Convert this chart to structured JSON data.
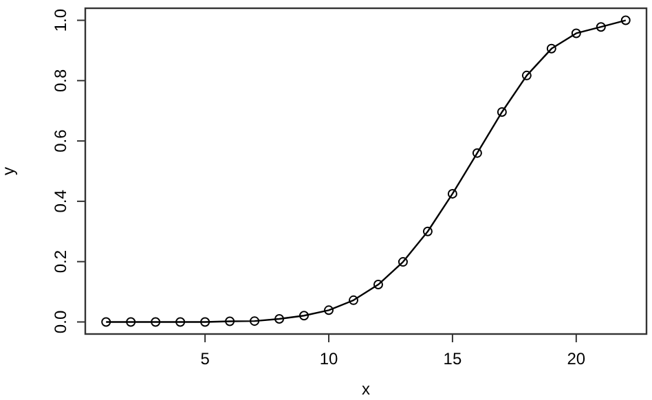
{
  "chart_data": {
    "type": "line",
    "xlabel": "x",
    "ylabel": "y",
    "x": [
      1,
      2,
      3,
      4,
      5,
      6,
      7,
      8,
      9,
      10,
      11,
      12,
      13,
      14,
      15,
      16,
      17,
      18,
      19,
      20,
      21,
      22
    ],
    "series": [
      {
        "color": "#000000",
        "values": [
          0,
          0,
          0,
          0,
          0,
          0.002,
          0.003,
          0.01,
          0.021,
          0.039,
          0.072,
          0.124,
          0.199,
          0.3,
          0.425,
          0.56,
          0.696,
          0.817,
          0.906,
          0.957,
          0.978,
          1.0
        ]
      }
    ],
    "xlim": [
      0.16,
      22.84
    ],
    "ylim": [
      -0.04,
      1.04
    ],
    "xticks": [
      5,
      10,
      15,
      20
    ],
    "yticks": [
      {
        "value": 0,
        "label": "0.0"
      },
      {
        "value": 0.2,
        "label": "0.2"
      },
      {
        "value": 0.4,
        "label": "0.4"
      },
      {
        "value": 0.6,
        "label": "0.6"
      },
      {
        "value": 0.8,
        "label": "0.8"
      },
      {
        "value": 1,
        "label": "1.0"
      }
    ],
    "marker": "circle",
    "line_style": "solid"
  }
}
